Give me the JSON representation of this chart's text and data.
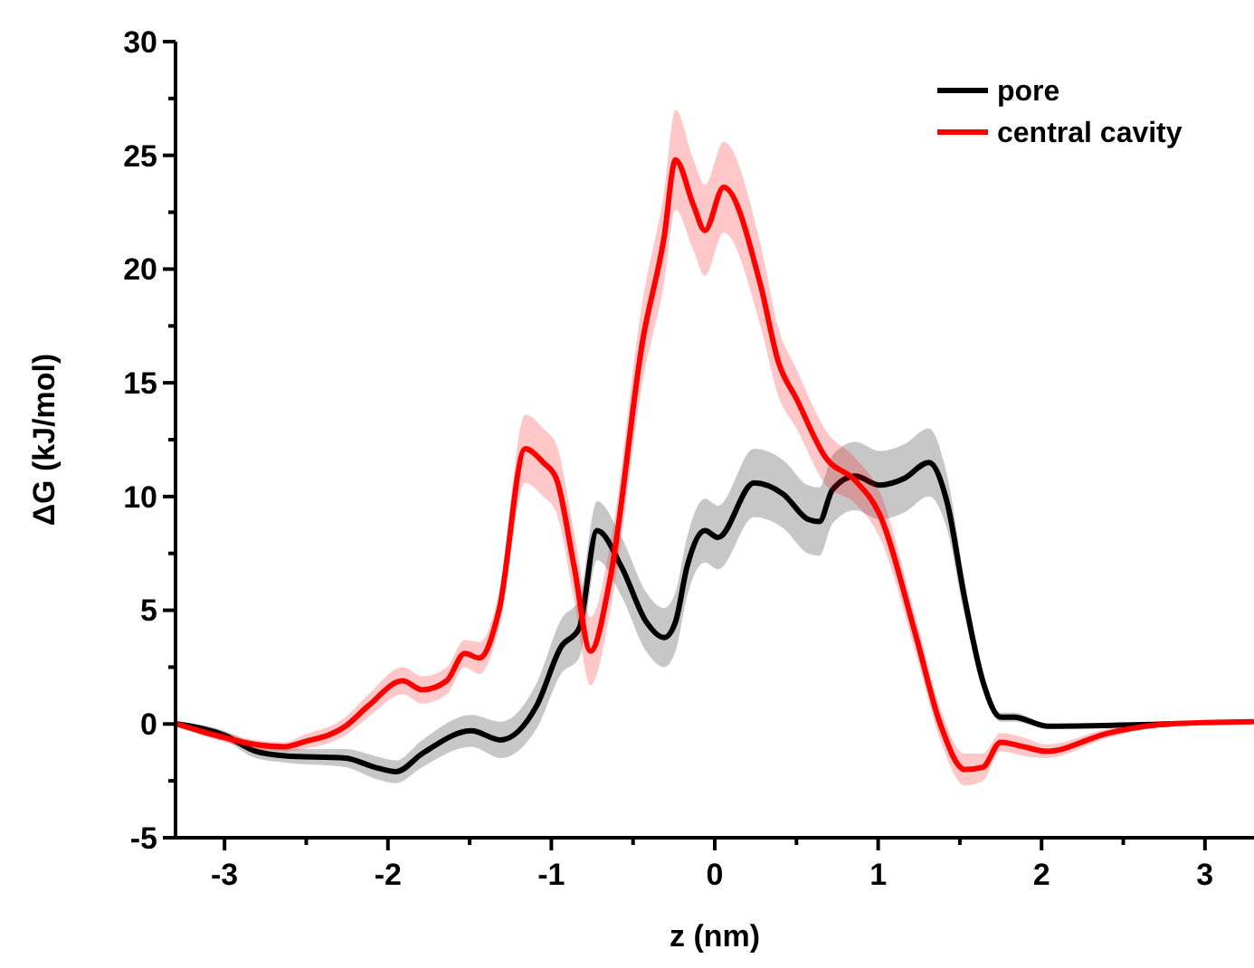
{
  "chart_data": {
    "type": "line",
    "xlabel": "z (nm)",
    "ylabel": "ΔG (kJ/mol)",
    "xlim": [
      -3.3,
      3.3
    ],
    "xticks": [
      -3,
      {
        "value": -2.5,
        "label": null
      },
      -2,
      {
        "value": -1.5,
        "label": null
      },
      -1,
      {
        "value": -0.5,
        "label": null
      },
      0,
      {
        "value": 0.5,
        "label": null
      },
      1,
      {
        "value": 1.5,
        "label": null
      },
      2,
      {
        "value": 2.5,
        "label": null
      },
      3
    ],
    "ylim": [
      -5,
      30
    ],
    "yticks": [
      -5,
      {
        "value": -2.5,
        "label": null
      },
      0,
      {
        "value": 2.5,
        "label": null
      },
      5,
      {
        "value": 7.5,
        "label": null
      },
      10,
      {
        "value": 12.5,
        "label": null
      },
      15,
      {
        "value": 17.5,
        "label": null
      },
      20,
      {
        "value": 22.5,
        "label": null
      },
      25,
      {
        "value": 27.5,
        "label": null
      },
      30
    ],
    "grid": false,
    "legend": "top right",
    "marker": "none",
    "line_style": "solid",
    "series": [
      {
        "name": "pore",
        "color": "#000000",
        "x": [
          -3.29,
          -3.0,
          -2.81,
          -2.63,
          -2.26,
          -2.08,
          -1.95,
          -1.79,
          -1.49,
          -1.31,
          -1.09,
          -0.94,
          -0.83,
          -0.72,
          -0.57,
          -0.42,
          -0.31,
          -0.24,
          -0.17,
          -0.06,
          0.02,
          0.24,
          0.42,
          0.57,
          0.64,
          0.72,
          0.86,
          1.01,
          1.16,
          1.31,
          1.42,
          1.53,
          1.64,
          1.75,
          1.83,
          2.04,
          2.78
        ],
        "values": [
          0,
          -0.5,
          -1.2,
          -1.4,
          -1.5,
          -1.9,
          -2.1,
          -1.3,
          -0.3,
          -0.7,
          0.8,
          3.4,
          4.2,
          8.5,
          6.9,
          4.5,
          3.8,
          4.5,
          6.9,
          8.5,
          8.2,
          10.6,
          10.1,
          9.0,
          8.9,
          10.3,
          10.9,
          10.5,
          10.8,
          11.5,
          9.8,
          5.5,
          1.9,
          0.3,
          0.3,
          -0.1,
          0
        ],
        "lower": [
          -0.1,
          -0.7,
          -1.5,
          -1.7,
          -1.9,
          -2.4,
          -2.6,
          -1.9,
          -1.0,
          -1.5,
          -0.2,
          2.2,
          2.9,
          7.2,
          5.6,
          3.2,
          2.5,
          3.2,
          5.6,
          7.1,
          6.8,
          9.1,
          8.6,
          7.5,
          7.4,
          8.8,
          9.4,
          9.0,
          9.3,
          10.0,
          8.6,
          4.7,
          1.5,
          0.1,
          0.1,
          -0.2,
          -0.1
        ],
        "upper": [
          0.1,
          -0.3,
          -0.9,
          -1.1,
          -1.1,
          -1.4,
          -1.6,
          -0.7,
          0.4,
          0.1,
          1.8,
          4.6,
          5.5,
          9.8,
          8.2,
          5.8,
          5.1,
          5.8,
          8.2,
          9.9,
          9.6,
          12.1,
          11.6,
          10.5,
          10.4,
          11.8,
          12.4,
          12.0,
          12.3,
          13.0,
          11.0,
          6.3,
          2.3,
          0.5,
          0.5,
          0,
          0.1
        ]
      },
      {
        "name": "central cavity",
        "color": "#ff0000",
        "x": [
          -3.29,
          -3.0,
          -2.81,
          -2.63,
          -2.52,
          -2.26,
          -2.12,
          -1.91,
          -1.79,
          -1.64,
          -1.53,
          -1.44,
          -1.32,
          -1.16,
          -1.05,
          -0.97,
          -0.86,
          -0.76,
          -0.64,
          -0.44,
          -0.31,
          -0.24,
          -0.13,
          -0.06,
          0.055,
          0.28,
          0.39,
          0.5,
          0.68,
          0.86,
          1.01,
          1.23,
          1.38,
          1.53,
          1.64,
          1.75,
          1.89,
          2.03,
          2.41,
          2.78,
          3.29
        ],
        "values": [
          0,
          -0.6,
          -0.9,
          -1.0,
          -0.8,
          -0.1,
          0.8,
          1.9,
          1.5,
          1.9,
          3.1,
          2.9,
          5.0,
          12.1,
          11.5,
          10.8,
          6.9,
          3.2,
          6.4,
          16.9,
          21.4,
          24.8,
          22.8,
          21.7,
          23.6,
          19.3,
          15.9,
          14.3,
          11.7,
          10.7,
          9.2,
          3.9,
          0,
          -2.0,
          -1.9,
          -0.8,
          -1.0,
          -1.2,
          -0.4,
          0,
          0.1
        ],
        "lower": [
          -0.1,
          -0.8,
          -1.1,
          -1.2,
          -1.1,
          -0.5,
          0.3,
          1.3,
          0.9,
          1.3,
          2.5,
          2.2,
          4.2,
          10.6,
          10.0,
          9.3,
          5.4,
          1.7,
          4.9,
          15.1,
          19.4,
          22.6,
          20.8,
          19.7,
          21.6,
          17.5,
          14.4,
          13.0,
          10.5,
          9.7,
          8.2,
          3.1,
          -0.7,
          -2.7,
          -2.5,
          -1.2,
          -1.4,
          -1.5,
          -0.6,
          -0.1,
          0
        ],
        "upper": [
          0.1,
          -0.4,
          -0.7,
          -0.8,
          -0.5,
          0.3,
          1.3,
          2.5,
          2.1,
          2.5,
          3.7,
          3.6,
          5.8,
          13.6,
          13.0,
          12.3,
          8.4,
          4.7,
          7.9,
          18.7,
          23.4,
          27.0,
          24.8,
          23.7,
          25.6,
          21.1,
          17.4,
          15.6,
          12.9,
          11.7,
          10.2,
          4.7,
          0.7,
          -1.3,
          -1.3,
          -0.4,
          -0.6,
          -0.9,
          -0.2,
          0.1,
          0.2
        ]
      }
    ]
  }
}
